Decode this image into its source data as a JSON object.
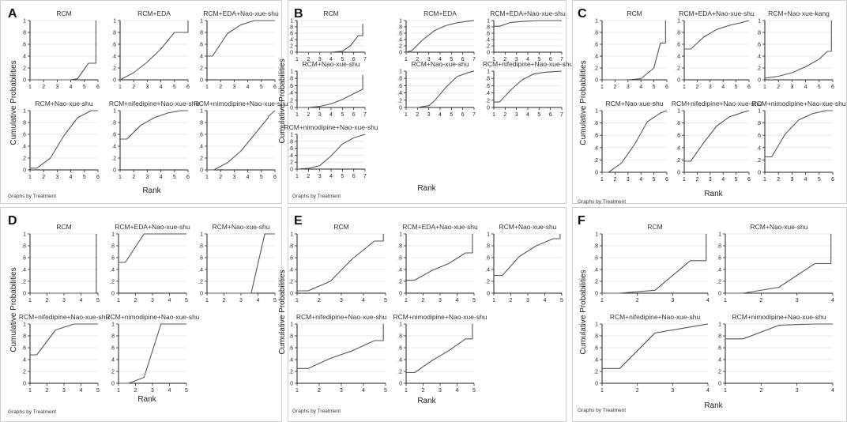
{
  "figure": {
    "footnote": "Graphs by Treatment",
    "xlabel": "Rank",
    "ylabel": "Cumulative Probabilities"
  },
  "chart_data": [
    {
      "type": "line",
      "panel": "A",
      "xlabel": "Rank",
      "ylabel": "Cumulative Probabilities",
      "footnote": "Graphs by Treatment",
      "xticks": [
        1,
        2,
        3,
        4,
        5,
        6
      ],
      "yticks": [
        0,
        0.2,
        0.4,
        0.6,
        0.8,
        1
      ],
      "ytick_labels": [
        "0",
        ".2",
        ".4",
        ".6",
        ".8",
        "1"
      ],
      "xlim": [
        1,
        6
      ],
      "ylim": [
        0,
        1
      ],
      "series": [
        {
          "name": "RCM",
          "x": [
            1,
            2,
            3,
            4,
            4.5,
            5.3,
            5.8,
            5.85,
            5.85
          ],
          "y": [
            0,
            0,
            0,
            0,
            0.02,
            0.28,
            0.28,
            0.28,
            1
          ]
        },
        {
          "name": "RCM+EDA",
          "x": [
            1,
            2,
            3,
            4,
            5,
            5.6,
            6,
            6
          ],
          "y": [
            0,
            0.12,
            0.3,
            0.52,
            0.8,
            0.8,
            0.8,
            1
          ]
        },
        {
          "name": "RCM+EDA+Nao-xue-shu",
          "x": [
            1,
            1.4,
            2.5,
            3.5,
            4.5,
            6
          ],
          "y": [
            0.4,
            0.4,
            0.78,
            0.93,
            1,
            1
          ]
        },
        {
          "name": "RCM+Nao-xue-shu",
          "x": [
            1,
            1.5,
            2.5,
            3.5,
            4.5,
            5.5,
            6
          ],
          "y": [
            0.03,
            0.03,
            0.2,
            0.58,
            0.88,
            1,
            1
          ]
        },
        {
          "name": "RCM+nifedipine+Nao-xue-shu",
          "x": [
            1,
            1.5,
            2.5,
            3.5,
            4.5,
            5.5,
            6
          ],
          "y": [
            0.52,
            0.52,
            0.75,
            0.88,
            0.96,
            1,
            1
          ]
        },
        {
          "name": "RCM+nimodipine+Nao-xue-shu",
          "x": [
            1,
            1.5,
            2.5,
            3.5,
            4.5,
            5.5,
            5.5,
            6
          ],
          "y": [
            0,
            0,
            0.12,
            0.32,
            0.6,
            0.88,
            0.9,
            1
          ]
        }
      ]
    },
    {
      "type": "line",
      "panel": "B",
      "xlabel": "Rank",
      "ylabel": "Cumulative Probabilities",
      "footnote": "Graphs by Treatment",
      "xticks": [
        1,
        2,
        3,
        4,
        5,
        6,
        7
      ],
      "yticks": [
        0,
        0.2,
        0.4,
        0.6,
        0.8,
        1
      ],
      "ytick_labels": [
        "0",
        ".2",
        ".4",
        ".6",
        ".8",
        "1"
      ],
      "xlim": [
        1,
        7
      ],
      "ylim": [
        0,
        1
      ],
      "series": [
        {
          "name": "RCM",
          "x": [
            1,
            2,
            3,
            4,
            5,
            5.7,
            6.4,
            6.8,
            6.8
          ],
          "y": [
            0,
            0,
            0,
            0,
            0.03,
            0.2,
            0.52,
            0.52,
            0.9
          ]
        },
        {
          "name": "RCM+EDA",
          "x": [
            1,
            1.5,
            2.5,
            3.5,
            4.5,
            5.5,
            6.5,
            7
          ],
          "y": [
            0,
            0.05,
            0.4,
            0.68,
            0.84,
            0.93,
            0.98,
            1
          ]
        },
        {
          "name": "RCM+EDA+Nao-xue-shu",
          "x": [
            1,
            1.5,
            2.5,
            3.5,
            5,
            7
          ],
          "y": [
            0.82,
            0.82,
            0.94,
            0.97,
            1,
            1
          ]
        },
        {
          "name": "RCM+Nao-xue-shu",
          "x": [
            1,
            2,
            3,
            4,
            5,
            6,
            6.8,
            6.8
          ],
          "y": [
            0,
            0,
            0.03,
            0.1,
            0.22,
            0.38,
            0.5,
            0.9
          ]
        },
        {
          "name": "RCM+Nao-xue-shu",
          "x": [
            1,
            2,
            3,
            3.5,
            4.5,
            5.5,
            6.5,
            7
          ],
          "y": [
            0,
            0,
            0.05,
            0.18,
            0.55,
            0.85,
            0.96,
            1
          ]
        },
        {
          "name": "RCM+nifedipine+Nao-xue-shu",
          "x": [
            1,
            1.5,
            2.5,
            3.5,
            4.5,
            5.5,
            7
          ],
          "y": [
            0.15,
            0.15,
            0.48,
            0.76,
            0.92,
            0.97,
            1
          ]
        },
        {
          "name": "RCM+nimodipine+Nao-xue-shu",
          "x": [
            1,
            2,
            3,
            4,
            5,
            6,
            7
          ],
          "y": [
            0,
            0.02,
            0.1,
            0.38,
            0.72,
            0.9,
            1
          ]
        }
      ]
    },
    {
      "type": "line",
      "panel": "C",
      "xlabel": "Rank",
      "ylabel": "Cumulative Probabilities",
      "footnote": "Graphs by Treatment",
      "xticks": [
        1,
        2,
        3,
        4,
        5,
        6
      ],
      "yticks": [
        0,
        0.2,
        0.4,
        0.6,
        0.8,
        1
      ],
      "ytick_labels": [
        "0",
        ".2",
        ".4",
        ".6",
        ".8",
        "1"
      ],
      "xlim": [
        1,
        6
      ],
      "ylim": [
        0,
        1
      ],
      "series": [
        {
          "name": "RCM",
          "x": [
            1,
            2,
            3,
            4,
            5,
            5.5,
            5.9,
            5.9
          ],
          "y": [
            0,
            0,
            0,
            0.02,
            0.2,
            0.62,
            0.62,
            1
          ]
        },
        {
          "name": "RCM+EDA+Nao-xue-shu",
          "x": [
            1,
            1.5,
            2.5,
            3.5,
            4.5,
            5.5,
            6
          ],
          "y": [
            0.52,
            0.52,
            0.72,
            0.85,
            0.92,
            0.97,
            1
          ]
        },
        {
          "name": "RCM+Nao-xue-kang",
          "x": [
            1,
            2,
            3,
            4,
            5,
            5.6,
            5.9,
            5.9
          ],
          "y": [
            0.03,
            0.06,
            0.12,
            0.22,
            0.35,
            0.48,
            0.48,
            1
          ]
        },
        {
          "name": "RCM+Nao-xue-shu",
          "x": [
            1,
            1.5,
            2.5,
            3.5,
            4.5,
            5.5,
            6
          ],
          "y": [
            0,
            0,
            0.15,
            0.45,
            0.82,
            0.96,
            1
          ]
        },
        {
          "name": "RCM+nifedipine+Nao-xue-shu",
          "x": [
            1,
            1.5,
            2.5,
            3.5,
            4.5,
            5.5,
            6
          ],
          "y": [
            0.18,
            0.18,
            0.48,
            0.75,
            0.9,
            0.97,
            1
          ]
        },
        {
          "name": "RCM+nimodipine+Nao-xue-shu",
          "x": [
            1,
            1.5,
            2.5,
            3.5,
            4.5,
            5.5,
            6
          ],
          "y": [
            0.25,
            0.25,
            0.62,
            0.85,
            0.95,
            1,
            1
          ]
        }
      ]
    },
    {
      "type": "line",
      "panel": "D",
      "xlabel": "Rank",
      "ylabel": "Cumulative Probabilities",
      "footnote": "Graphs by Treatment",
      "xticks": [
        1,
        2,
        3,
        4,
        5
      ],
      "yticks": [
        0,
        0.2,
        0.4,
        0.6,
        0.8,
        1
      ],
      "ytick_labels": [
        "0",
        ".2",
        ".4",
        ".6",
        ".8",
        "1"
      ],
      "xlim": [
        1,
        5
      ],
      "ylim": [
        0,
        1
      ],
      "series": [
        {
          "name": "RCM",
          "x": [
            1,
            2,
            3,
            4,
            4.9,
            4.9
          ],
          "y": [
            0,
            0,
            0,
            0,
            0,
            1
          ]
        },
        {
          "name": "RCM+EDA+Nao-xue-shu",
          "x": [
            1,
            1.4,
            2.5,
            5
          ],
          "y": [
            0.52,
            0.52,
            1,
            1
          ]
        },
        {
          "name": "RCM+Nao-xue-shu",
          "x": [
            1,
            2,
            3,
            3.6,
            4.4,
            5
          ],
          "y": [
            0,
            0,
            0,
            0,
            1,
            1
          ]
        },
        {
          "name": "RCM+nifedipine+Nao-xue-shu",
          "x": [
            1,
            1.4,
            2.5,
            3.6,
            5
          ],
          "y": [
            0.48,
            0.48,
            0.9,
            1,
            1
          ]
        },
        {
          "name": "RCM+nimodipine+Nao-xue-shu",
          "x": [
            1,
            1.6,
            2.5,
            3.5,
            5
          ],
          "y": [
            0,
            0,
            0.1,
            1,
            1
          ]
        }
      ]
    },
    {
      "type": "line",
      "panel": "E",
      "xlabel": "Rank",
      "ylabel": "Cumulative Probabilities",
      "footnote": "Graphs by Treatment",
      "xticks": [
        1,
        2,
        3,
        4,
        5
      ],
      "yticks": [
        0,
        0.2,
        0.4,
        0.6,
        0.8,
        1
      ],
      "ytick_labels": [
        "0",
        ".2",
        ".4",
        ".6",
        ".8",
        "1"
      ],
      "xlim": [
        1,
        5
      ],
      "ylim": [
        0,
        1
      ],
      "series": [
        {
          "name": "RCM",
          "x": [
            1,
            1.5,
            2.5,
            3.5,
            4.5,
            4.9,
            4.9
          ],
          "y": [
            0.04,
            0.04,
            0.2,
            0.58,
            0.88,
            0.88,
            1
          ]
        },
        {
          "name": "RCM+EDA+Nao-xue-shu",
          "x": [
            1,
            1.5,
            2.5,
            3.5,
            4.5,
            4.9,
            4.9
          ],
          "y": [
            0.22,
            0.22,
            0.38,
            0.5,
            0.68,
            0.68,
            1
          ]
        },
        {
          "name": "RCM+Nao-xue-shu",
          "x": [
            1,
            1.5,
            2.5,
            3.5,
            4.5,
            4.9,
            4.9
          ],
          "y": [
            0.3,
            0.3,
            0.62,
            0.8,
            0.92,
            0.92,
            1
          ]
        },
        {
          "name": "RCM+nifedipine+Nao-xue-shu",
          "x": [
            1,
            1.5,
            2.5,
            3.5,
            4.5,
            4.9,
            4.9
          ],
          "y": [
            0.25,
            0.25,
            0.42,
            0.55,
            0.72,
            0.72,
            1
          ]
        },
        {
          "name": "RCM+nimodipine+Nao-xue-shu",
          "x": [
            1,
            1.5,
            2.5,
            3.5,
            4.5,
            4.9,
            4.9
          ],
          "y": [
            0.18,
            0.18,
            0.38,
            0.55,
            0.75,
            0.75,
            1
          ]
        }
      ]
    },
    {
      "type": "line",
      "panel": "F",
      "xlabel": "Rank",
      "ylabel": "Cumulative Probabilities",
      "footnote": "Graphs by Treatment",
      "xticks": [
        1,
        2,
        3,
        4
      ],
      "yticks": [
        0,
        0.2,
        0.4,
        0.6,
        0.8,
        1
      ],
      "ytick_labels": [
        "0",
        ".2",
        ".4",
        ".6",
        ".8",
        "1"
      ],
      "xlim": [
        1,
        4
      ],
      "ylim": [
        0,
        1
      ],
      "series": [
        {
          "name": "RCM",
          "x": [
            1,
            1.5,
            2.5,
            3.5,
            3.95,
            3.95
          ],
          "y": [
            0,
            0,
            0.05,
            0.55,
            0.55,
            1
          ]
        },
        {
          "name": "RCM+Nao-xue-shu",
          "x": [
            1,
            1.5,
            2.5,
            3.5,
            3.95,
            3.95
          ],
          "y": [
            0,
            0,
            0.1,
            0.5,
            0.5,
            1
          ]
        },
        {
          "name": "RCM+nifedipine+Nao-xue-shu",
          "x": [
            1,
            1.5,
            2.5,
            3.5,
            4
          ],
          "y": [
            0.25,
            0.25,
            0.85,
            0.95,
            1
          ]
        },
        {
          "name": "RCM+nimodipine+Nao-xue-shu",
          "x": [
            1,
            1.5,
            2.5,
            3.5,
            4
          ],
          "y": [
            0.75,
            0.75,
            0.98,
            1,
            1
          ]
        }
      ]
    }
  ]
}
